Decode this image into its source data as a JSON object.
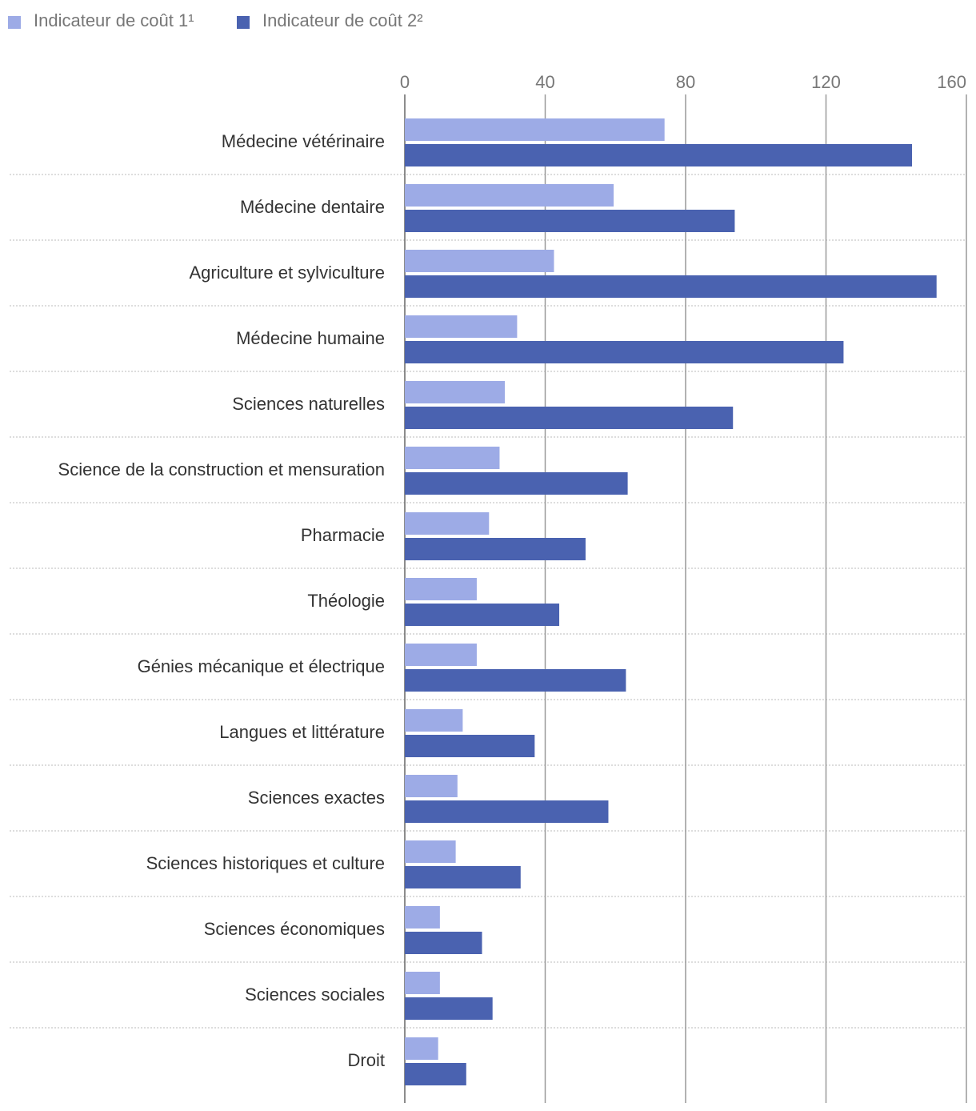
{
  "chart_data": {
    "type": "bar",
    "orientation": "horizontal",
    "categories": [
      "Médecine vétérinaire",
      "Médecine dentaire",
      "Agriculture et sylviculture",
      "Médecine humaine",
      "Sciences naturelles",
      "Science de la construction et mensuration",
      "Pharmacie",
      "Théologie",
      "Génies mécanique et électrique",
      "Langues et littérature",
      "Sciences exactes",
      "Sciences historiques et culture",
      "Sciences économiques",
      "Sciences sociales",
      "Droit"
    ],
    "series": [
      {
        "name": "Indicateur de coût 1¹",
        "color": "#9dabe6",
        "values": [
          74,
          59.5,
          42.5,
          32,
          28.5,
          27,
          24,
          20.5,
          20.5,
          16.5,
          15,
          14.5,
          10,
          10,
          9.5
        ]
      },
      {
        "name": "Indicateur de coût 2²",
        "color": "#4a62b0",
        "values": [
          144.5,
          94,
          151.5,
          125,
          93.5,
          63.5,
          51.5,
          44,
          63,
          37,
          58,
          33,
          22,
          25,
          17.5
        ]
      }
    ],
    "xlim": [
      0,
      160
    ],
    "xticks": [
      0,
      40,
      80,
      120,
      160
    ],
    "grid": true,
    "legend": "top-left"
  }
}
